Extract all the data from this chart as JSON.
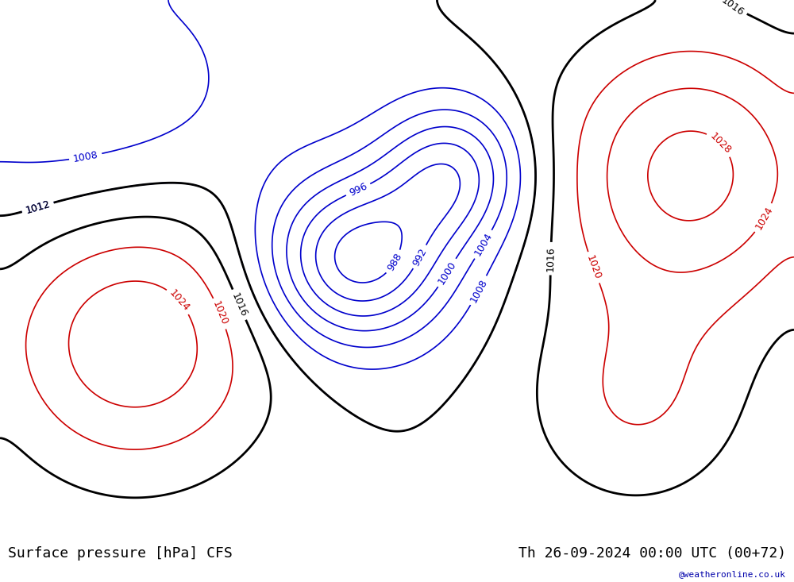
{
  "title_left": "Surface pressure [hPa] CFS",
  "title_right": "Th 26-09-2024 00:00 UTC (00+72)",
  "watermark": "@weatheronline.co.uk",
  "bg_ocean": "#d0d0d0",
  "bg_land": "#c8f0a0",
  "bg_figure": "#ffffff",
  "footer_bg": "#e8e8e8",
  "contour_blue": "#0000cc",
  "contour_red": "#cc0000",
  "contour_black": "#000000",
  "land_color": "#b8e896",
  "sea_color": "#d8d8d8",
  "label_fontsize": 9,
  "title_fontsize": 13
}
